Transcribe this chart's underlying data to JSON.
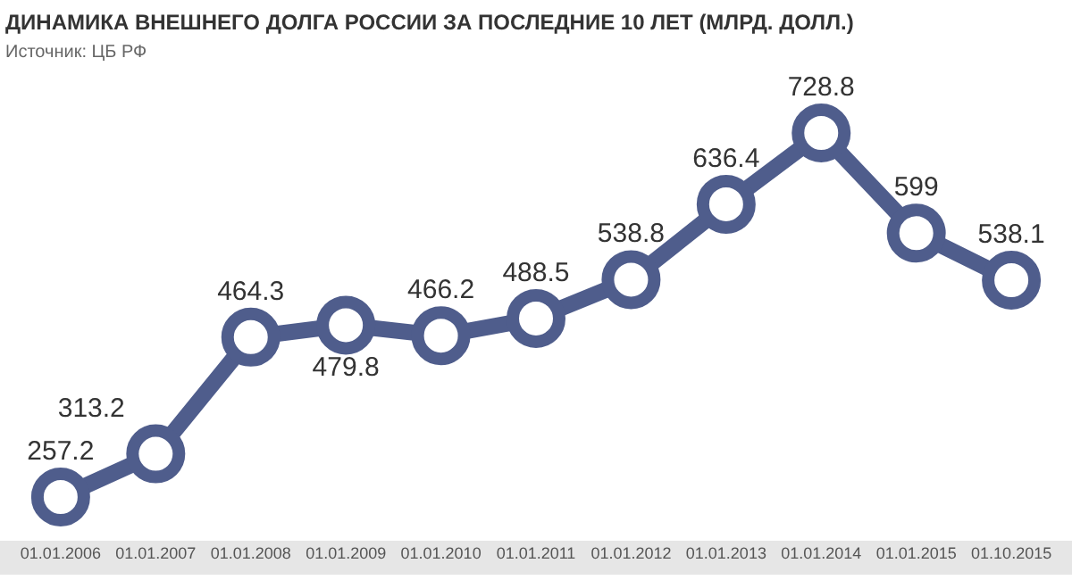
{
  "chart_data": {
    "type": "line",
    "title": "ДИНАМИКА ВНЕШНЕГО ДОЛГА РОССИИ ЗА ПОСЛЕДНИЕ 10 ЛЕТ (МЛРД. ДОЛЛ.)",
    "subtitle": "Источник: ЦБ РФ",
    "categories": [
      "01.01.2006",
      "01.01.2007",
      "01.01.2008",
      "01.01.2009",
      "01.01.2010",
      "01.01.2011",
      "01.01.2012",
      "01.01.2013",
      "01.01.2014",
      "01.01.2015",
      "01.10.2015"
    ],
    "series": [
      {
        "color": "#4f5d8c",
        "values": [
          257.2,
          313.2,
          464.3,
          479.8,
          466.2,
          488.5,
          538.8,
          636.4,
          728.8,
          599,
          538.1
        ]
      }
    ],
    "data_labels": true,
    "marker": "circle",
    "line_style": "solid"
  }
}
